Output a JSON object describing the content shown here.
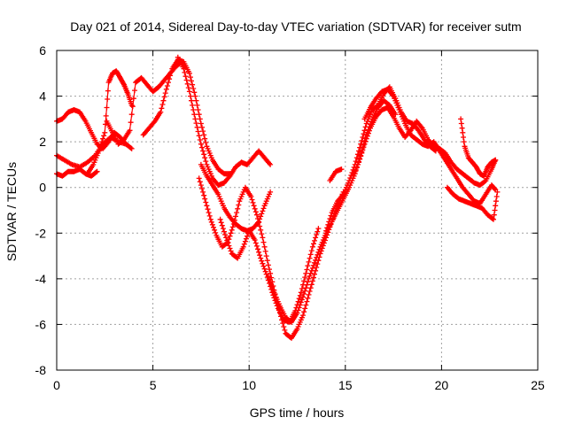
{
  "chart_data": {
    "type": "scatter",
    "title": "Day 021 of 2014, Sidereal Day-to-day VTEC variation (SDTVAR) for receiver sutm",
    "xlabel": "GPS time / hours",
    "ylabel": "SDTVAR / TECUs",
    "xlim": [
      0,
      25
    ],
    "ylim": [
      -8,
      6
    ],
    "xticks": [
      0,
      5,
      10,
      15,
      20,
      25
    ],
    "yticks": [
      -8,
      -6,
      -4,
      -2,
      0,
      2,
      4,
      6
    ],
    "grid": true,
    "marker": "plus",
    "colors": {
      "series": "#ff0000",
      "grid": "#a0a0a0",
      "axis": "#000000"
    },
    "series": [
      {
        "x": [
          0.0,
          0.3,
          0.6,
          0.9,
          1.2,
          1.5,
          1.8,
          2.1,
          2.4,
          2.7,
          3.0,
          3.3,
          3.6,
          3.9
        ],
        "y": [
          2.9,
          3.0,
          3.3,
          3.4,
          3.3,
          2.9,
          2.4,
          1.9,
          1.7,
          2.0,
          2.4,
          2.2,
          1.9,
          1.7
        ]
      },
      {
        "x": [
          0.0,
          0.4,
          0.8,
          1.2,
          1.6,
          2.0,
          2.4,
          2.8,
          3.2,
          3.6
        ],
        "y": [
          1.4,
          1.2,
          1.0,
          0.9,
          1.1,
          1.4,
          1.9,
          2.2,
          2.0,
          1.9
        ]
      },
      {
        "x": [
          0.0,
          0.3,
          0.6,
          0.9,
          1.2,
          1.5,
          1.8,
          2.1
        ],
        "y": [
          0.6,
          0.5,
          0.7,
          0.7,
          0.8,
          0.6,
          0.5,
          0.7
        ]
      },
      {
        "x": [
          1.6,
          1.9,
          2.2,
          2.5,
          2.7,
          2.9,
          3.1,
          3.3,
          3.5,
          3.7,
          3.9
        ],
        "y": [
          0.6,
          1.0,
          1.6,
          2.4,
          4.6,
          5.0,
          5.1,
          4.8,
          4.5,
          4.1,
          3.6
        ]
      },
      {
        "x": [
          2.6,
          2.9,
          3.2,
          3.5,
          3.8,
          4.1,
          4.4,
          4.7,
          5.0,
          5.3,
          5.6,
          5.9,
          6.2,
          6.5
        ],
        "y": [
          2.9,
          2.4,
          1.9,
          2.1,
          2.5,
          4.6,
          4.8,
          4.5,
          4.2,
          4.4,
          4.7,
          5.0,
          5.3,
          5.5
        ]
      },
      {
        "x": [
          4.5,
          4.8,
          5.1,
          5.4,
          5.7,
          6.0,
          6.3,
          6.6,
          6.9,
          7.2,
          7.5,
          7.8,
          8.1,
          8.4,
          8.7,
          9.0
        ],
        "y": [
          2.3,
          2.6,
          2.9,
          3.3,
          4.3,
          5.2,
          5.6,
          5.5,
          5.0,
          4.0,
          2.8,
          1.8,
          1.2,
          0.8,
          0.6,
          0.6
        ]
      },
      {
        "x": [
          6.3,
          6.6,
          6.9,
          7.2,
          7.5,
          7.8,
          8.1,
          8.4,
          8.7,
          9.0,
          9.3,
          9.6,
          9.9,
          10.2,
          10.5,
          10.8,
          11.1
        ],
        "y": [
          5.7,
          5.2,
          4.2,
          3.0,
          1.9,
          1.0,
          0.4,
          0.1,
          0.2,
          0.5,
          0.9,
          1.1,
          1.0,
          1.3,
          1.6,
          1.3,
          1.0
        ]
      },
      {
        "x": [
          7.5,
          7.8,
          8.1,
          8.4,
          8.7,
          9.0,
          9.3,
          9.6,
          9.9,
          10.2,
          10.5,
          10.8,
          11.1
        ],
        "y": [
          1.0,
          0.5,
          0.1,
          -0.3,
          -0.9,
          -1.3,
          -1.6,
          -1.8,
          -1.9,
          -1.8,
          -1.5,
          -0.8,
          -0.2
        ]
      },
      {
        "x": [
          7.4,
          7.7,
          8.0,
          8.3,
          8.6,
          8.9,
          9.2,
          9.5,
          9.8,
          10.1,
          10.4,
          10.7,
          11.0,
          11.3,
          11.6,
          11.9,
          12.2,
          12.5,
          12.8,
          13.1,
          13.4,
          13.7,
          14.0,
          14.3,
          14.6,
          14.9
        ],
        "y": [
          0.4,
          -0.5,
          -1.4,
          -2.1,
          -2.6,
          -2.4,
          -1.6,
          -0.6,
          0.0,
          -0.4,
          -1.2,
          -2.2,
          -3.4,
          -4.5,
          -5.5,
          -6.4,
          -6.6,
          -6.2,
          -5.6,
          -4.7,
          -3.8,
          -2.9,
          -2.2,
          -1.5,
          -0.8,
          -0.2
        ]
      },
      {
        "x": [
          8.5,
          8.8,
          9.1,
          9.4,
          9.7,
          10.0,
          10.3,
          10.6,
          10.9,
          11.2,
          11.5,
          11.8,
          12.1,
          12.4,
          12.7,
          13.0,
          13.3,
          13.6
        ],
        "y": [
          -1.4,
          -2.2,
          -2.9,
          -3.1,
          -2.6,
          -1.9,
          -2.3,
          -3.1,
          -3.8,
          -4.6,
          -5.3,
          -5.8,
          -5.9,
          -5.4,
          -4.6,
          -3.6,
          -2.6,
          -1.8
        ]
      },
      {
        "x": [
          11.0,
          11.3,
          11.6,
          11.9,
          12.2,
          12.5,
          12.8,
          13.1,
          13.4,
          13.7,
          14.0,
          14.3,
          14.6,
          14.9,
          15.2,
          15.5,
          15.8,
          16.1,
          16.4,
          16.7,
          17.0,
          17.3,
          17.6
        ],
        "y": [
          -3.9,
          -4.6,
          -5.2,
          -5.7,
          -5.9,
          -5.5,
          -4.8,
          -4.0,
          -3.3,
          -2.6,
          -2.0,
          -1.5,
          -1.0,
          -0.5,
          0.0,
          0.6,
          1.4,
          2.3,
          3.0,
          3.5,
          3.8,
          3.6,
          3.2
        ]
      },
      {
        "x": [
          14.0,
          14.3,
          14.6,
          14.9,
          15.2,
          15.5,
          15.8,
          16.1,
          16.4,
          16.7,
          17.0,
          17.3,
          17.6,
          17.9,
          18.2,
          18.5,
          18.8,
          19.1,
          19.4,
          19.7
        ],
        "y": [
          -1.9,
          -1.1,
          -0.6,
          -0.3,
          0.3,
          1.0,
          1.9,
          2.8,
          3.4,
          3.6,
          4.1,
          4.4,
          3.9,
          3.3,
          2.9,
          2.8,
          2.5,
          2.1,
          1.8,
          1.6
        ]
      },
      {
        "x": [
          14.2,
          14.5,
          14.8
        ],
        "y": [
          0.3,
          0.7,
          0.8
        ]
      },
      {
        "x": [
          15.4,
          15.7,
          16.0,
          16.3,
          16.6,
          16.9,
          17.2,
          17.5,
          17.8,
          18.1,
          18.4,
          18.7,
          19.0,
          19.3,
          19.6,
          19.9,
          20.2,
          20.5,
          20.8,
          21.1,
          21.4,
          21.7,
          22.0,
          22.3,
          22.6,
          22.8
        ],
        "y": [
          0.5,
          1.1,
          1.9,
          2.6,
          3.1,
          3.4,
          3.5,
          3.1,
          2.6,
          2.2,
          2.5,
          2.9,
          2.6,
          2.1,
          1.8,
          1.7,
          1.5,
          1.1,
          0.8,
          0.6,
          0.4,
          0.2,
          0.1,
          0.3,
          0.8,
          1.2
        ]
      },
      {
        "x": [
          16.0,
          16.3,
          16.6,
          16.9,
          17.2,
          17.5,
          17.8,
          18.1,
          18.4,
          18.7,
          19.0,
          19.3,
          19.6,
          19.9,
          20.2,
          20.5,
          20.8,
          21.1,
          21.4,
          21.7,
          22.0,
          22.3,
          22.6,
          22.8
        ],
        "y": [
          3.0,
          3.5,
          3.9,
          4.2,
          4.3,
          4.0,
          3.4,
          2.8,
          2.3,
          2.1,
          1.9,
          1.8,
          2.0,
          1.6,
          1.2,
          0.8,
          0.4,
          0.0,
          -0.3,
          -0.6,
          -0.7,
          -0.3,
          0.1,
          -0.1
        ]
      },
      {
        "x": [
          20.3,
          20.6,
          20.9,
          21.2,
          21.5,
          21.8,
          22.1,
          22.4,
          22.7,
          22.9
        ],
        "y": [
          0.0,
          -0.3,
          -0.5,
          -0.6,
          -0.7,
          -0.8,
          -0.9,
          -1.2,
          -1.4,
          -0.2
        ]
      },
      {
        "x": [
          21.0,
          21.2,
          21.4,
          21.6,
          21.8,
          22.0,
          22.2,
          22.4,
          22.6,
          22.8
        ],
        "y": [
          3.0,
          1.8,
          1.3,
          1.1,
          0.9,
          0.6,
          0.5,
          0.9,
          1.1,
          1.2
        ]
      }
    ]
  }
}
